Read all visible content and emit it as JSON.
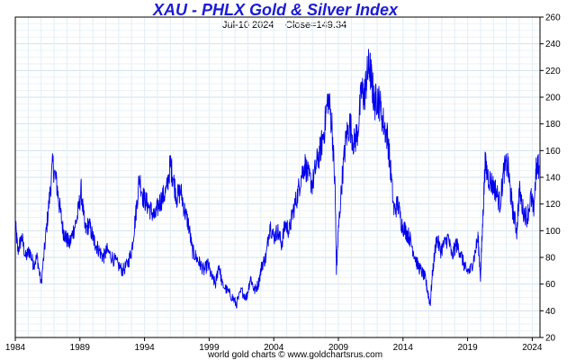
{
  "chart_data": {
    "type": "line",
    "title": "XAU - PHLX Gold & Silver Index",
    "subtitle_date": "Jul-10  2024",
    "subtitle_close": "Close=149.34",
    "credit": "world gold charts © www.goldchartsrus.com",
    "xlim": [
      1984.0,
      2024.6
    ],
    "ylim": [
      20,
      260
    ],
    "x_ticks": [
      1984,
      1989,
      1994,
      1999,
      2004,
      2009,
      2014,
      2019,
      2024
    ],
    "y_ticks": [
      20,
      40,
      60,
      80,
      100,
      120,
      140,
      160,
      180,
      200,
      220,
      240,
      260
    ],
    "grid": true,
    "y_axis_side": "right",
    "series": [
      {
        "color": "#0000ee",
        "x": [
          1984.0,
          1984.2,
          1984.5,
          1984.8,
          1985.1,
          1985.4,
          1985.7,
          1986.0,
          1986.3,
          1986.6,
          1986.9,
          1987.2,
          1987.4,
          1987.7,
          1987.9,
          1988.2,
          1988.5,
          1988.8,
          1989.1,
          1989.4,
          1989.7,
          1990.0,
          1990.2,
          1990.5,
          1990.8,
          1991.1,
          1991.5,
          1991.9,
          1992.3,
          1992.7,
          1993.0,
          1993.3,
          1993.6,
          1993.9,
          1994.2,
          1994.5,
          1994.8,
          1995.1,
          1995.4,
          1995.7,
          1996.0,
          1996.2,
          1996.5,
          1996.8,
          1997.1,
          1997.4,
          1997.7,
          1998.0,
          1998.3,
          1998.6,
          1998.9,
          1999.2,
          1999.5,
          1999.75,
          2000.0,
          2000.4,
          2000.8,
          2001.1,
          2001.5,
          2001.9,
          2002.2,
          2002.5,
          2002.8,
          2003.1,
          2003.4,
          2003.7,
          2004.0,
          2004.3,
          2004.6,
          2004.9,
          2005.2,
          2005.5,
          2005.8,
          2006.1,
          2006.4,
          2006.7,
          2007.0,
          2007.3,
          2007.6,
          2007.9,
          2008.2,
          2008.5,
          2008.75,
          2008.85,
          2009.0,
          2009.3,
          2009.6,
          2009.9,
          2010.2,
          2010.5,
          2010.8,
          2011.0,
          2011.2,
          2011.4,
          2011.6,
          2011.8,
          2012.0,
          2012.2,
          2012.5,
          2012.8,
          2013.0,
          2013.3,
          2013.6,
          2013.9,
          2014.2,
          2014.5,
          2014.8,
          2015.1,
          2015.4,
          2015.7,
          2015.9,
          2016.1,
          2016.3,
          2016.6,
          2016.9,
          2017.2,
          2017.5,
          2017.8,
          2018.1,
          2018.4,
          2018.7,
          2018.9,
          2019.2,
          2019.5,
          2019.8,
          2020.0,
          2020.2,
          2020.35,
          2020.6,
          2020.9,
          2021.2,
          2021.5,
          2021.8,
          2022.1,
          2022.3,
          2022.5,
          2022.8,
          2023.0,
          2023.3,
          2023.6,
          2023.9,
          2024.1,
          2024.3,
          2024.52
        ],
        "y": [
          105,
          85,
          95,
          80,
          85,
          75,
          80,
          60,
          90,
          120,
          150,
          135,
          120,
          100,
          95,
          90,
          100,
          110,
          130,
          100,
          105,
          95,
          90,
          85,
          80,
          85,
          80,
          75,
          70,
          75,
          85,
          110,
          140,
          125,
          120,
          115,
          110,
          120,
          125,
          130,
          150,
          140,
          125,
          130,
          115,
          105,
          85,
          80,
          75,
          70,
          75,
          65,
          60,
          75,
          60,
          55,
          50,
          45,
          55,
          50,
          65,
          55,
          60,
          75,
          80,
          105,
          95,
          100,
          90,
          105,
          100,
          115,
          125,
          140,
          150,
          140,
          135,
          150,
          160,
          175,
          200,
          180,
          130,
          70,
          100,
          140,
          170,
          180,
          165,
          175,
          205,
          200,
          215,
          225,
          210,
          195,
          200,
          195,
          180,
          170,
          150,
          115,
          120,
          105,
          100,
          95,
          85,
          75,
          70,
          65,
          55,
          45,
          70,
          95,
          85,
          90,
          95,
          80,
          90,
          85,
          75,
          70,
          70,
          80,
          95,
          65,
          115,
          150,
          140,
          135,
          130,
          120,
          145,
          150,
          130,
          115,
          100,
          130,
          115,
          110,
          125,
          115,
          145,
          149
        ]
      }
    ]
  }
}
